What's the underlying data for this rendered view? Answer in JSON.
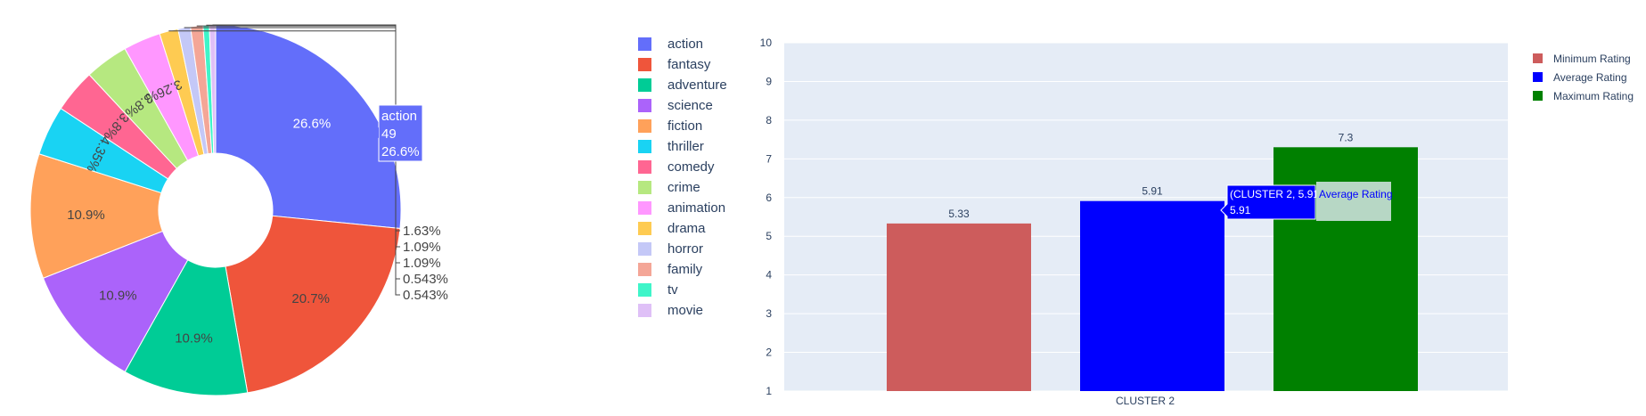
{
  "chart_data": [
    {
      "type": "pie",
      "hole": true,
      "slices": [
        {
          "label": "action",
          "count": 49,
          "percent_text": "26.6%",
          "color": "#636efa"
        },
        {
          "label": "fantasy",
          "percent_text": "20.7%",
          "color": "#ef553b"
        },
        {
          "label": "adventure",
          "percent_text": "10.9%",
          "color": "#00cc96"
        },
        {
          "label": "science",
          "percent_text": "10.9%",
          "color": "#ab63fa"
        },
        {
          "label": "fiction",
          "percent_text": "10.9%",
          "color": "#ffa15a"
        },
        {
          "label": "thriller",
          "percent_text": "4.35%",
          "color": "#19d3f3"
        },
        {
          "label": "comedy",
          "percent_text": "3.8%",
          "color": "#ff6692"
        },
        {
          "label": "crime",
          "percent_text": "3.8%",
          "color": "#b6e880"
        },
        {
          "label": "animation",
          "percent_text": "3.26%",
          "color": "#ff97ff"
        },
        {
          "label": "drama",
          "percent_text": "1.63%",
          "color": "#fecb52"
        },
        {
          "label": "horror",
          "percent_text": "1.09%",
          "color": "#c4c8f7"
        },
        {
          "label": "family",
          "percent_text": "1.09%",
          "color": "#f4a697"
        },
        {
          "label": "tv",
          "percent_text": "0.543%",
          "color": "#3ff5c9"
        },
        {
          "label": "movie",
          "percent_text": "0.543%",
          "color": "#dfc0f7"
        }
      ],
      "hover": {
        "label": "action",
        "value": "49",
        "percent": "26.6%"
      }
    },
    {
      "type": "bar",
      "categories": [
        "CLUSTER 2"
      ],
      "series": [
        {
          "name": "Minimum Rating",
          "values": [
            5.33
          ],
          "value_text": "5.33",
          "color": "#cd5c5c"
        },
        {
          "name": "Average Rating",
          "values": [
            5.91
          ],
          "value_text": "5.91",
          "color": "#0000ff"
        },
        {
          "name": "Maximum Rating",
          "values": [
            7.3
          ],
          "value_text": "7.3",
          "color": "#008000"
        }
      ],
      "ylim": [
        1,
        10
      ],
      "yticks": [
        "1",
        "2",
        "3",
        "4",
        "5",
        "6",
        "7",
        "8",
        "9",
        "10"
      ],
      "grid": true,
      "legend_position": "top-right",
      "hover": {
        "point": "(CLUSTER 2, 5.91)",
        "value": "5.91",
        "series": "Average Rating"
      }
    }
  ]
}
